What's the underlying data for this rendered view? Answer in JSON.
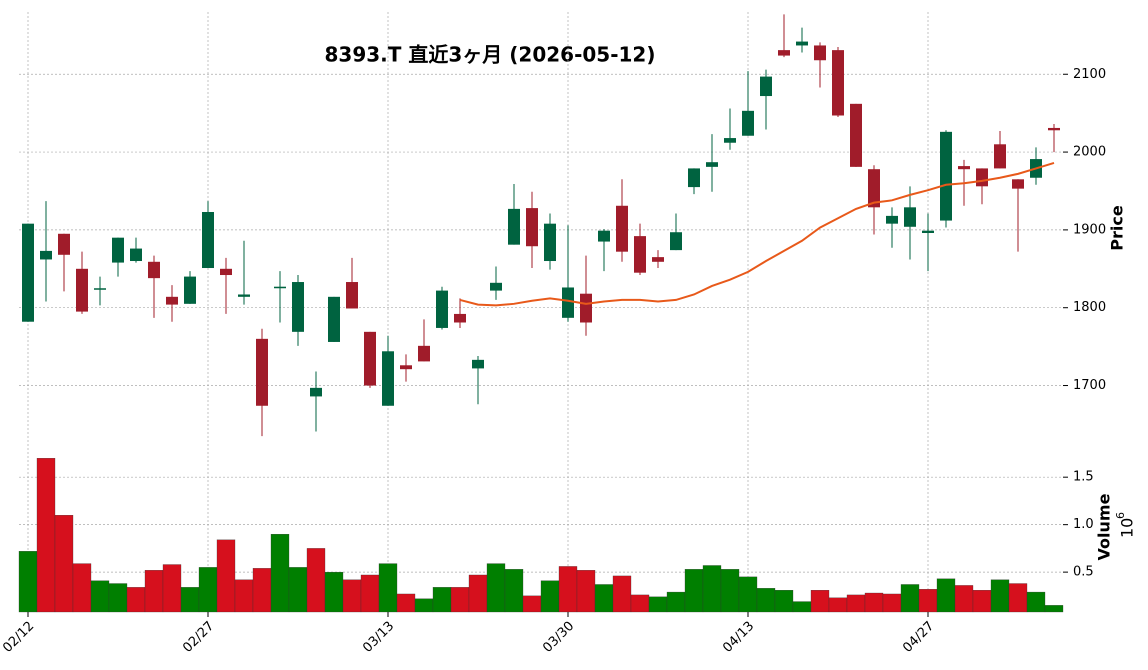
{
  "chart_data": {
    "type": "candlestick",
    "title": "8393.T 直近3ヶ月 (2026-05-12)",
    "categories": [
      "02/12",
      null,
      null,
      null,
      null,
      null,
      null,
      null,
      null,
      null,
      "02/27",
      null,
      null,
      null,
      null,
      null,
      null,
      null,
      null,
      null,
      "03/13",
      null,
      null,
      null,
      null,
      null,
      null,
      null,
      null,
      null,
      "03/30",
      null,
      null,
      null,
      null,
      null,
      null,
      null,
      null,
      null,
      "04/13",
      null,
      null,
      null,
      null,
      null,
      null,
      null,
      null,
      null,
      "04/27",
      null,
      null,
      null,
      null,
      null,
      null,
      null
    ],
    "open": [
      1782,
      1862,
      1895,
      1850,
      1824,
      1858,
      1860,
      1859,
      1814,
      1805,
      1851,
      1850,
      1814,
      1760,
      1825,
      1769,
      1686,
      1756,
      1833,
      1769,
      1674,
      1726,
      1751,
      1774,
      1792,
      1722,
      1822,
      1881,
      1928,
      1860,
      1787,
      1818,
      1885,
      1931,
      1892,
      1865,
      1874,
      1955,
      1981,
      2012,
      2021,
      2072,
      2131,
      2137,
      2137,
      2131,
      2062,
      1978,
      1908,
      1904,
      1896,
      1912,
      1982,
      1979,
      2010,
      1965,
      1967,
      2031
    ],
    "high": [
      1908,
      1937,
      1895,
      1872,
      1840,
      1890,
      1890,
      1867,
      1829,
      1847,
      1937,
      1864,
      1886,
      1773,
      1847,
      1842,
      1718,
      1814,
      1864,
      1769,
      1764,
      1740,
      1785,
      1827,
      1812,
      1738,
      1853,
      1959,
      1949,
      1921,
      1906,
      1867,
      1901,
      1965,
      1908,
      1874,
      1921,
      1979,
      2023,
      2056,
      2104,
      2106,
      2177,
      2160,
      2141,
      2135,
      2062,
      1983,
      1929,
      1956,
      1921,
      2028,
      1990,
      1979,
      2027,
      1965,
      2006,
      2036
    ],
    "low": [
      1782,
      1808,
      1821,
      1792,
      1803,
      1840,
      1858,
      1787,
      1782,
      1805,
      1851,
      1792,
      1804,
      1635,
      1781,
      1751,
      1641,
      1756,
      1799,
      1697,
      1674,
      1705,
      1731,
      1772,
      1774,
      1676,
      1810,
      1881,
      1851,
      1849,
      1782,
      1764,
      1847,
      1859,
      1842,
      1851,
      1874,
      1946,
      1949,
      2003,
      2021,
      2029,
      2122,
      2128,
      2083,
      2045,
      1981,
      1894,
      1877,
      1862,
      1847,
      1903,
      1931,
      1933,
      1979,
      1872,
      1958,
      2000
    ],
    "close": [
      1908,
      1873,
      1868,
      1795,
      1825,
      1890,
      1876,
      1838,
      1804,
      1840,
      1923,
      1842,
      1817,
      1674,
      1827,
      1833,
      1697,
      1814,
      1799,
      1700,
      1744,
      1721,
      1731,
      1822,
      1781,
      1733,
      1832,
      1927,
      1879,
      1908,
      1826,
      1781,
      1899,
      1872,
      1845,
      1859,
      1897,
      1979,
      1987,
      2018,
      2053,
      2097,
      2124,
      2142,
      2118,
      2047,
      1981,
      1929,
      1918,
      1929,
      1899,
      2026,
      1978,
      1956,
      1979,
      1953,
      1991,
      2028
    ],
    "up_color": "#006340",
    "down_color": "#a01c2a",
    "ma": {
      "color": "#e8591a",
      "values": [
        null,
        null,
        null,
        null,
        null,
        null,
        null,
        null,
        null,
        null,
        null,
        null,
        null,
        null,
        null,
        null,
        null,
        null,
        null,
        null,
        null,
        null,
        null,
        null,
        1810,
        1804,
        1803,
        1805,
        1809,
        1812,
        1809,
        1805,
        1808,
        1810,
        1810,
        1808,
        1810,
        1817,
        1828,
        1836,
        1846,
        1860,
        1873,
        1886,
        1903,
        1915,
        1927,
        1935,
        1938,
        1945,
        1951,
        1958,
        1960,
        1963,
        1967,
        1972,
        1979,
        1986
      ]
    },
    "ylabel": "Price",
    "ylim": [
      1630,
      2180
    ],
    "yticks": [
      1700,
      1800,
      1900,
      2000,
      2100
    ],
    "grid": true,
    "volume": {
      "label": "Volume",
      "multiplier": {
        "base": "10",
        "exponent": "6"
      },
      "up_color": "#007f00",
      "down_color": "#d6101d",
      "values": [
        0.72,
        1.7,
        1.1,
        0.59,
        0.41,
        0.38,
        0.34,
        0.52,
        0.58,
        0.34,
        0.55,
        0.84,
        0.42,
        0.54,
        0.9,
        0.55,
        0.75,
        0.5,
        0.42,
        0.47,
        0.59,
        0.27,
        0.22,
        0.34,
        0.34,
        0.47,
        0.59,
        0.53,
        0.25,
        0.41,
        0.56,
        0.52,
        0.37,
        0.46,
        0.26,
        0.24,
        0.29,
        0.53,
        0.57,
        0.53,
        0.45,
        0.33,
        0.31,
        0.19,
        0.31,
        0.23,
        0.26,
        0.28,
        0.27,
        0.37,
        0.32,
        0.43,
        0.36,
        0.31,
        0.42,
        0.38,
        0.29,
        0.15
      ],
      "ylim": [
        0.08,
        1.86
      ],
      "yticks": [
        0.5,
        {
          "value": 1,
          "label": "1.0"
        },
        1.5
      ]
    }
  }
}
